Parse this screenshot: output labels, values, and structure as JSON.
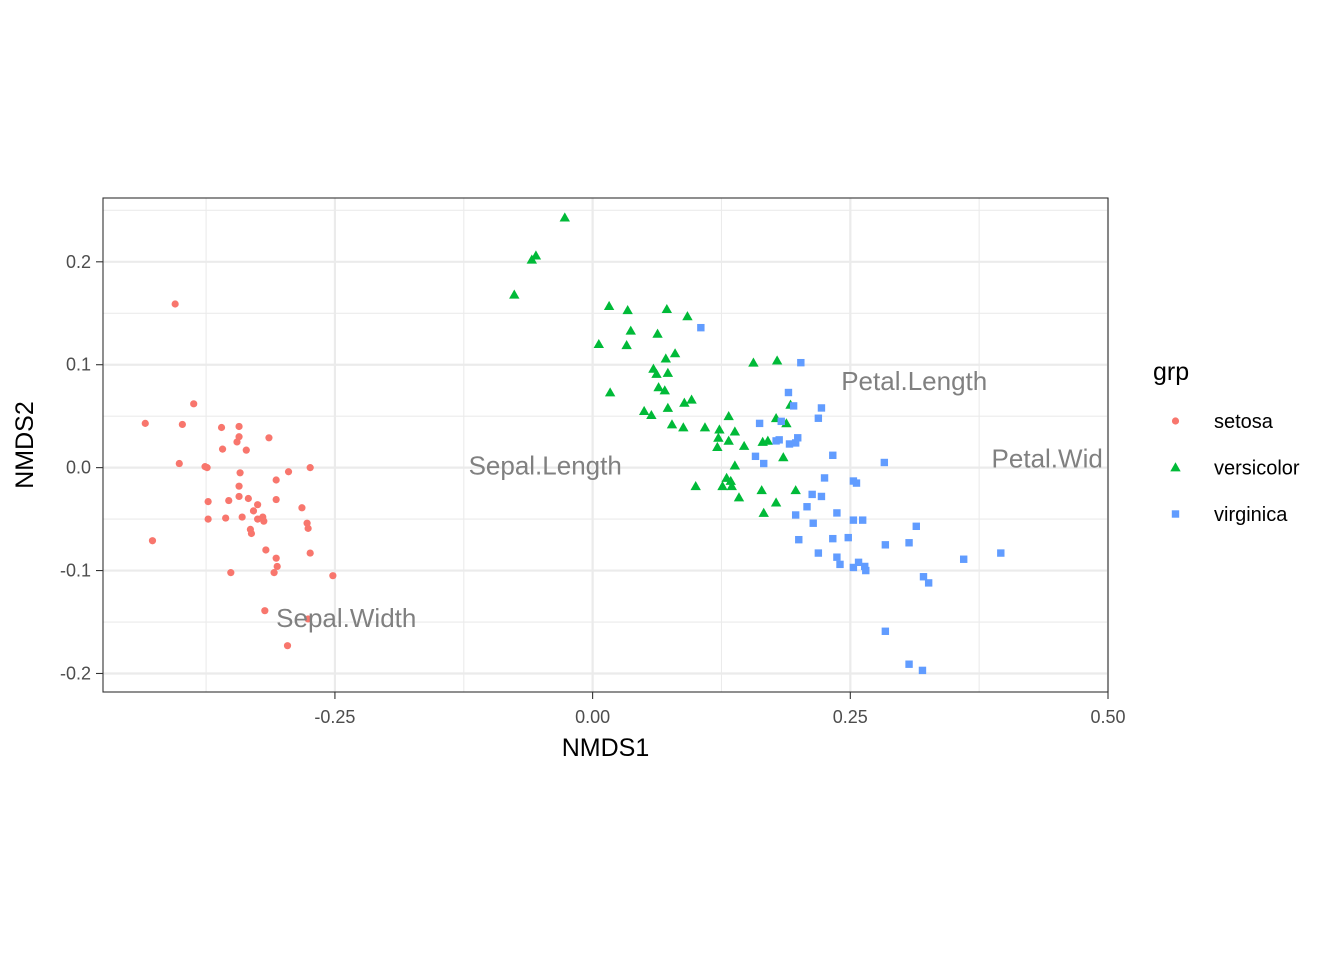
{
  "chart_data": {
    "type": "scatter",
    "xlabel": "NMDS1",
    "ylabel": "NMDS2",
    "xlim": [
      -0.475,
      0.5
    ],
    "ylim": [
      -0.218,
      0.262
    ],
    "x_ticks": [
      -0.25,
      0.0,
      0.25,
      0.5
    ],
    "x_tick_labels": [
      "-0.25",
      "0.00",
      "0.25",
      "0.50"
    ],
    "y_ticks": [
      -0.2,
      -0.1,
      0.0,
      0.1,
      0.2
    ],
    "y_tick_labels": [
      "-0.2",
      "-0.1",
      "0.0",
      "0.1",
      "0.2"
    ],
    "grid": true,
    "legend": {
      "title": "grp",
      "placement": "right"
    },
    "series": [
      {
        "name": "setosa",
        "color": "#F8766D",
        "shape": "circle",
        "points": [
          [
            -0.405,
            0.159
          ],
          [
            -0.387,
            0.062
          ],
          [
            -0.434,
            0.043
          ],
          [
            -0.398,
            0.042
          ],
          [
            -0.36,
            0.039
          ],
          [
            -0.343,
            0.04
          ],
          [
            -0.343,
            0.03
          ],
          [
            -0.345,
            0.025
          ],
          [
            -0.314,
            0.029
          ],
          [
            -0.359,
            0.018
          ],
          [
            -0.336,
            0.017
          ],
          [
            -0.401,
            0.004
          ],
          [
            -0.376,
            0.001
          ],
          [
            -0.374,
            0.0
          ],
          [
            -0.342,
            -0.005
          ],
          [
            -0.295,
            -0.004
          ],
          [
            -0.274,
            0.0
          ],
          [
            -0.343,
            -0.018
          ],
          [
            -0.307,
            -0.012
          ],
          [
            -0.373,
            -0.033
          ],
          [
            -0.353,
            -0.032
          ],
          [
            -0.343,
            -0.028
          ],
          [
            -0.334,
            -0.03
          ],
          [
            -0.325,
            -0.036
          ],
          [
            -0.307,
            -0.031
          ],
          [
            -0.282,
            -0.039
          ],
          [
            -0.373,
            -0.05
          ],
          [
            -0.356,
            -0.049
          ],
          [
            -0.34,
            -0.048
          ],
          [
            -0.329,
            -0.042
          ],
          [
            -0.325,
            -0.05
          ],
          [
            -0.32,
            -0.048
          ],
          [
            -0.319,
            -0.052
          ],
          [
            -0.332,
            -0.06
          ],
          [
            -0.331,
            -0.064
          ],
          [
            -0.277,
            -0.054
          ],
          [
            -0.276,
            -0.059
          ],
          [
            -0.427,
            -0.071
          ],
          [
            -0.317,
            -0.08
          ],
          [
            -0.307,
            -0.088
          ],
          [
            -0.274,
            -0.083
          ],
          [
            -0.306,
            -0.096
          ],
          [
            -0.351,
            -0.102
          ],
          [
            -0.309,
            -0.102
          ],
          [
            -0.252,
            -0.105
          ],
          [
            -0.318,
            -0.139
          ],
          [
            -0.276,
            -0.147
          ],
          [
            -0.296,
            -0.173
          ]
        ]
      },
      {
        "name": "versicolor",
        "color": "#00BA38",
        "shape": "triangle",
        "points": [
          [
            -0.027,
            0.243
          ],
          [
            -0.055,
            0.206
          ],
          [
            -0.059,
            0.202
          ],
          [
            -0.076,
            0.168
          ],
          [
            0.016,
            0.157
          ],
          [
            0.034,
            0.153
          ],
          [
            0.072,
            0.154
          ],
          [
            0.092,
            0.147
          ],
          [
            0.037,
            0.133
          ],
          [
            0.063,
            0.13
          ],
          [
            0.006,
            0.12
          ],
          [
            0.033,
            0.119
          ],
          [
            0.08,
            0.111
          ],
          [
            0.071,
            0.106
          ],
          [
            0.156,
            0.102
          ],
          [
            0.179,
            0.104
          ],
          [
            0.059,
            0.096
          ],
          [
            0.062,
            0.091
          ],
          [
            0.073,
            0.092
          ],
          [
            0.064,
            0.078
          ],
          [
            0.07,
            0.075
          ],
          [
            0.017,
            0.073
          ],
          [
            0.096,
            0.066
          ],
          [
            0.089,
            0.063
          ],
          [
            0.192,
            0.061
          ],
          [
            0.05,
            0.055
          ],
          [
            0.057,
            0.051
          ],
          [
            0.073,
            0.058
          ],
          [
            0.132,
            0.05
          ],
          [
            0.178,
            0.048
          ],
          [
            0.188,
            0.043
          ],
          [
            0.077,
            0.042
          ],
          [
            0.088,
            0.039
          ],
          [
            0.109,
            0.039
          ],
          [
            0.123,
            0.037
          ],
          [
            0.138,
            0.035
          ],
          [
            0.132,
            0.026
          ],
          [
            0.122,
            0.029
          ],
          [
            0.121,
            0.02
          ],
          [
            0.165,
            0.025
          ],
          [
            0.17,
            0.026
          ],
          [
            0.147,
            0.021
          ],
          [
            0.185,
            0.01
          ],
          [
            0.138,
            0.002
          ],
          [
            0.13,
            -0.01
          ],
          [
            0.134,
            -0.013
          ],
          [
            0.135,
            -0.018
          ],
          [
            0.1,
            -0.018
          ],
          [
            0.142,
            -0.029
          ],
          [
            0.126,
            -0.018
          ],
          [
            0.164,
            -0.022
          ],
          [
            0.197,
            -0.022
          ],
          [
            0.178,
            -0.034
          ],
          [
            0.166,
            -0.044
          ]
        ]
      },
      {
        "name": "virginica",
        "color": "#619CFF",
        "shape": "square",
        "points": [
          [
            0.105,
            0.136
          ],
          [
            0.202,
            0.102
          ],
          [
            0.19,
            0.073
          ],
          [
            0.195,
            0.06
          ],
          [
            0.222,
            0.058
          ],
          [
            0.162,
            0.043
          ],
          [
            0.183,
            0.045
          ],
          [
            0.219,
            0.048
          ],
          [
            0.181,
            0.027
          ],
          [
            0.178,
            0.026
          ],
          [
            0.191,
            0.023
          ],
          [
            0.199,
            0.029
          ],
          [
            0.197,
            0.024
          ],
          [
            0.233,
            0.012
          ],
          [
            0.158,
            0.011
          ],
          [
            0.166,
            0.004
          ],
          [
            0.283,
            0.005
          ],
          [
            0.225,
            -0.01
          ],
          [
            0.253,
            -0.013
          ],
          [
            0.256,
            -0.015
          ],
          [
            0.213,
            -0.026
          ],
          [
            0.222,
            -0.028
          ],
          [
            0.208,
            -0.038
          ],
          [
            0.197,
            -0.046
          ],
          [
            0.237,
            -0.044
          ],
          [
            0.253,
            -0.051
          ],
          [
            0.262,
            -0.051
          ],
          [
            0.314,
            -0.057
          ],
          [
            0.214,
            -0.054
          ],
          [
            0.233,
            -0.069
          ],
          [
            0.248,
            -0.068
          ],
          [
            0.2,
            -0.07
          ],
          [
            0.284,
            -0.075
          ],
          [
            0.307,
            -0.073
          ],
          [
            0.219,
            -0.083
          ],
          [
            0.237,
            -0.087
          ],
          [
            0.24,
            -0.094
          ],
          [
            0.258,
            -0.092
          ],
          [
            0.253,
            -0.097
          ],
          [
            0.264,
            -0.096
          ],
          [
            0.265,
            -0.1
          ],
          [
            0.396,
            -0.083
          ],
          [
            0.36,
            -0.089
          ],
          [
            0.321,
            -0.106
          ],
          [
            0.326,
            -0.112
          ],
          [
            0.284,
            -0.159
          ],
          [
            0.307,
            -0.191
          ],
          [
            0.32,
            -0.197
          ]
        ]
      }
    ],
    "annotations": [
      {
        "label": "Sepal.Length",
        "x": -0.046,
        "y": 0.002
      },
      {
        "label": "Sepal.Width",
        "x": -0.239,
        "y": -0.146
      },
      {
        "label": "Petal.Length",
        "x": 0.312,
        "y": 0.084
      },
      {
        "label": "Petal.Wid",
        "x": 0.441,
        "y": 0.009
      }
    ]
  }
}
